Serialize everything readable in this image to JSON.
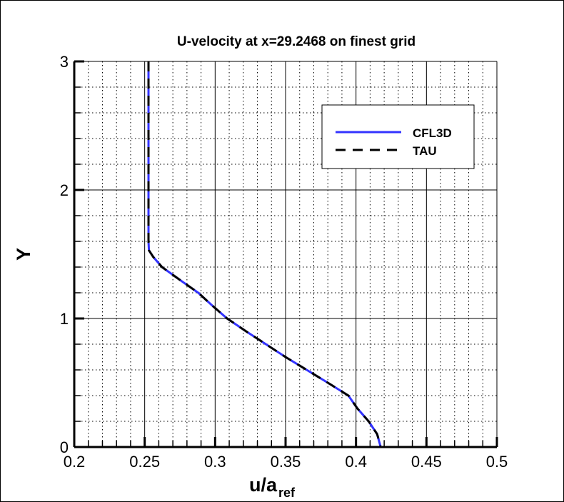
{
  "chart_data": {
    "type": "line",
    "title": "U-velocity at x=29.2468 on finest grid",
    "xlabel": "u/a",
    "xlabel_sub": "ref",
    "ylabel": "Y",
    "xlim": [
      0.2,
      0.5
    ],
    "ylim": [
      0,
      3
    ],
    "xticks": [
      "0.2",
      "0.25",
      "0.3",
      "0.35",
      "0.4",
      "0.45",
      "0.5"
    ],
    "yticks": [
      "0",
      "1",
      "2",
      "3"
    ],
    "grid": true,
    "legend_position": "top-right",
    "series": [
      {
        "name": "CFL3D",
        "color": "#3333ff",
        "style": "solid",
        "x": [
          0.2527,
          0.2527,
          0.253,
          0.256,
          0.2623,
          0.275,
          0.288,
          0.298,
          0.3085,
          0.322,
          0.336,
          0.35,
          0.365,
          0.38,
          0.3946,
          0.401,
          0.409,
          0.415,
          0.4175
        ],
        "y": [
          3,
          1.6,
          1.53,
          1.48,
          1.4,
          1.3,
          1.2,
          1.1,
          1.0,
          0.9,
          0.8,
          0.7,
          0.6,
          0.5,
          0.4,
          0.3,
          0.2,
          0.1,
          0
        ]
      },
      {
        "name": "TAU",
        "color": "#000000",
        "style": "dashed",
        "x": [
          0.2527,
          0.2527,
          0.253,
          0.256,
          0.2623,
          0.275,
          0.288,
          0.298,
          0.3085,
          0.322,
          0.336,
          0.35,
          0.365,
          0.38,
          0.3946,
          0.401,
          0.409,
          0.415,
          0.4175
        ],
        "y": [
          3,
          1.6,
          1.53,
          1.48,
          1.4,
          1.3,
          1.2,
          1.1,
          1.0,
          0.9,
          0.8,
          0.7,
          0.6,
          0.5,
          0.4,
          0.3,
          0.2,
          0.1,
          0
        ]
      }
    ]
  }
}
